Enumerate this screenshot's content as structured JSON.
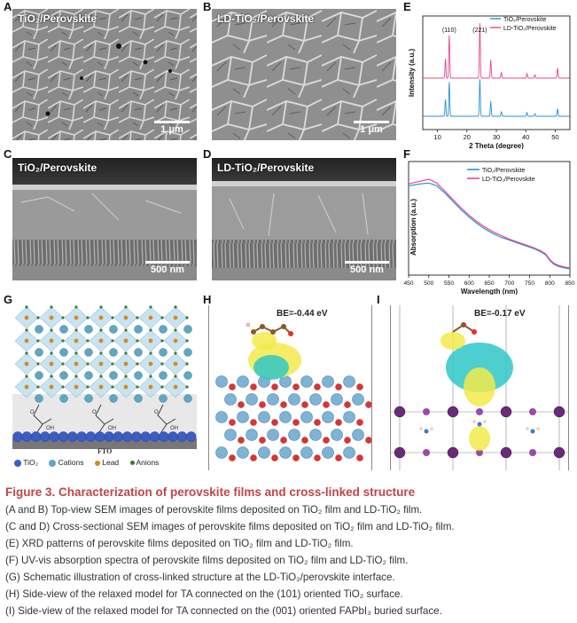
{
  "panels": {
    "A": {
      "letter": "A",
      "title": "TiO₂/Perovskite",
      "scale": "1 μm"
    },
    "B": {
      "letter": "B",
      "title": "LD-TiO₂/Perovskite",
      "scale": "1 μm"
    },
    "C": {
      "letter": "C",
      "title": "TiO₂/Perovskite",
      "scale": "500 nm"
    },
    "D": {
      "letter": "D",
      "title": "LD-TiO₂/Perovskite",
      "scale": "500 nm"
    },
    "E": {
      "letter": "E"
    },
    "F": {
      "letter": "F"
    },
    "G": {
      "letter": "G",
      "fto": "FTO",
      "legend": [
        "TiO₂",
        "Cations",
        "Lead",
        "Anions"
      ]
    },
    "H": {
      "letter": "H",
      "be": "BE=-0.44 eV"
    },
    "I": {
      "letter": "I",
      "be": "BE=-0.17 eV"
    }
  },
  "colors": {
    "series1": "#2a8fd6",
    "series2": "#e8468f",
    "caption": "#c0454a"
  },
  "chart_data": [
    {
      "type": "line",
      "panel": "E",
      "xlabel": "2 Theta (degree)",
      "ylabel": "Intensity (a.u.)",
      "xlim": [
        5,
        55
      ],
      "xticks": [
        10,
        20,
        30,
        40,
        50
      ],
      "annotations": [
        {
          "text": "(110)",
          "x": 14.0
        },
        {
          "text": "(221)",
          "x": 24.4
        }
      ],
      "legend_position": "top-right",
      "series": [
        {
          "name": "TiO₂/Perovskite",
          "color": "#2a8fd6",
          "peaks": [
            [
              12.7,
              0.45
            ],
            [
              14.0,
              0.92
            ],
            [
              24.4,
              1.0
            ],
            [
              28.1,
              0.4
            ],
            [
              31.7,
              0.12
            ],
            [
              40.4,
              0.1
            ],
            [
              43.1,
              0.07
            ],
            [
              50.8,
              0.2
            ]
          ]
        },
        {
          "name": "LD-TiO₂/Perovskite",
          "color": "#e8468f",
          "peaks": [
            [
              12.7,
              0.35
            ],
            [
              14.0,
              0.78
            ],
            [
              24.4,
              1.0
            ],
            [
              28.1,
              0.33
            ],
            [
              31.7,
              0.1
            ],
            [
              40.4,
              0.08
            ],
            [
              43.1,
              0.06
            ],
            [
              50.8,
              0.18
            ]
          ]
        }
      ]
    },
    {
      "type": "line",
      "panel": "F",
      "xlabel": "Wavelength (nm)",
      "ylabel": "Absorption (a.u.)",
      "xlim": [
        450,
        850
      ],
      "xticks": [
        450,
        500,
        550,
        600,
        650,
        700,
        750,
        800,
        850
      ],
      "legend_position": "top-right",
      "series": [
        {
          "name": "TiO₂/Perovskite",
          "color": "#2a8fd6",
          "x": [
            450,
            480,
            500,
            520,
            540,
            560,
            580,
            600,
            620,
            640,
            660,
            680,
            700,
            720,
            740,
            760,
            780,
            790,
            800,
            810,
            820,
            835,
            850
          ],
          "y": [
            0.93,
            0.95,
            0.96,
            0.93,
            0.85,
            0.76,
            0.67,
            0.59,
            0.52,
            0.46,
            0.41,
            0.37,
            0.34,
            0.31,
            0.28,
            0.25,
            0.21,
            0.18,
            0.12,
            0.08,
            0.06,
            0.04,
            0.03
          ]
        },
        {
          "name": "LD-TiO₂/Perovskite",
          "color": "#e8468f",
          "x": [
            450,
            480,
            500,
            520,
            540,
            560,
            580,
            600,
            620,
            640,
            660,
            680,
            700,
            720,
            740,
            760,
            780,
            790,
            800,
            810,
            820,
            835,
            850
          ],
          "y": [
            0.95,
            0.98,
            1.0,
            0.96,
            0.87,
            0.78,
            0.69,
            0.61,
            0.54,
            0.48,
            0.43,
            0.39,
            0.35,
            0.32,
            0.29,
            0.26,
            0.22,
            0.19,
            0.13,
            0.09,
            0.07,
            0.05,
            0.04
          ]
        }
      ]
    }
  ],
  "caption": {
    "title": "Figure 3.  Characterization of perovskite films and cross-linked structure",
    "lines": [
      "(A and B) Top-view SEM images of perovskite films deposited on TiO₂ film and LD-TiO₂ film.",
      "(C and D) Cross-sectional SEM images of perovskite films deposited on TiO₂ film and LD-TiO₂ film.",
      "(E) XRD patterns of perovskite films deposited on TiO₂ film and LD-TiO₂ film.",
      "(F) UV-vis absorption spectra of perovskite films deposited on TiO₂ film and LD-TiO₂ film.",
      "(G) Schematic illustration of cross-linked structure at the LD-TiO₂/perovskite interface.",
      "(H) Side-view of the relaxed model for TA connected on the (101) oriented TiO₂ surface.",
      "(I) Side-view of the relaxed model for TA connected on the (001) oriented FAPbI₃ buried surface."
    ]
  }
}
